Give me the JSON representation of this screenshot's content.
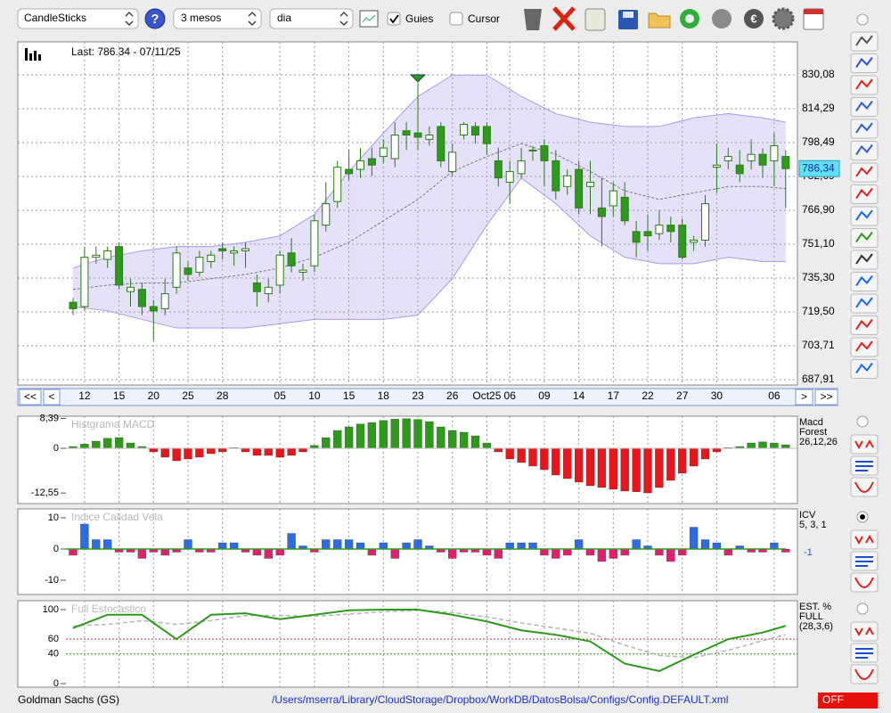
{
  "toolbar": {
    "chart_type": "CandleSticks",
    "period": "3 mesos",
    "interval": "dia",
    "guides": "Guies",
    "cursor": "Cursor"
  },
  "price_panel": {
    "type": "candlestick",
    "last": "Last: 786.34 - 07/11/25",
    "categories": [
      null,
      "12",
      null,
      null,
      "15",
      null,
      null,
      "20",
      null,
      null,
      "25",
      null,
      null,
      "28",
      null,
      null,
      null,
      null,
      "05",
      null,
      null,
      "10",
      null,
      null,
      "15",
      null,
      null,
      "18",
      null,
      null,
      "23",
      null,
      null,
      "26",
      null,
      null,
      "Oct25",
      null,
      "06",
      null,
      null,
      "09",
      null,
      null,
      "14",
      null,
      null,
      "17",
      null,
      null,
      "22",
      null,
      null,
      "27",
      null,
      null,
      "30",
      null,
      null,
      null,
      null,
      "06",
      null
    ],
    "open": [
      724,
      722,
      745,
      744,
      750,
      729,
      730,
      722,
      721,
      731,
      740,
      738,
      743,
      749,
      747,
      748,
      733,
      728,
      732,
      747,
      738,
      741,
      760,
      771,
      786,
      786,
      791,
      792,
      791,
      804,
      803,
      800,
      806,
      785,
      802,
      806,
      806,
      790,
      780,
      784,
      795,
      797,
      790,
      778,
      786,
      778,
      768,
      769,
      773,
      757,
      757,
      756,
      760,
      760,
      752,
      753,
      787,
      790,
      788,
      790,
      793,
      790,
      792
    ],
    "close": [
      721,
      745,
      746,
      748,
      732,
      731,
      722,
      720,
      728,
      747,
      737,
      745,
      746,
      748,
      748,
      749,
      729,
      731,
      746,
      741,
      739,
      762,
      770,
      787,
      784,
      790,
      788,
      796,
      802,
      802,
      801,
      802,
      790,
      794,
      807,
      802,
      798,
      782,
      785,
      790,
      795,
      790,
      776,
      783,
      768,
      780,
      764,
      776,
      762,
      752,
      755,
      760,
      757,
      745,
      753,
      770,
      788,
      792,
      784,
      793,
      788,
      797,
      786.34
    ],
    "high": [
      726,
      750,
      750,
      750,
      752,
      735,
      733,
      725,
      735,
      750,
      743,
      748,
      748,
      752,
      750,
      752,
      737,
      735,
      748,
      754,
      742,
      765,
      780,
      790,
      795,
      796,
      796,
      800,
      808,
      808,
      826,
      806,
      808,
      798,
      808,
      808,
      808,
      796,
      790,
      796,
      797,
      800,
      795,
      786,
      790,
      790,
      782,
      780,
      780,
      762,
      765,
      767,
      764,
      763,
      755,
      774,
      798,
      796,
      795,
      800,
      796,
      803,
      795
    ],
    "low": [
      718,
      720,
      742,
      740,
      730,
      722,
      718,
      706,
      718,
      728,
      734,
      736,
      740,
      744,
      741,
      740,
      722,
      724,
      728,
      738,
      734,
      738,
      757,
      768,
      781,
      782,
      783,
      789,
      787,
      795,
      795,
      797,
      787,
      783,
      800,
      798,
      793,
      778,
      770,
      782,
      790,
      778,
      772,
      774,
      765,
      765,
      750,
      764,
      760,
      745,
      748,
      753,
      752,
      744,
      748,
      750,
      775,
      786,
      780,
      786,
      782,
      778,
      768
    ],
    "up_color": "#ffffff",
    "down_color": "#2e9a1c",
    "signal_index": 30,
    "bands": {
      "x": [
        0,
        3,
        6,
        9,
        12,
        15,
        18,
        21,
        24,
        27,
        30,
        33,
        36,
        39,
        42,
        45,
        48,
        51,
        54,
        57,
        60,
        62
      ],
      "upper": [
        740,
        745,
        748,
        750,
        750,
        752,
        755,
        765,
        785,
        803,
        820,
        830,
        830,
        820,
        812,
        808,
        806,
        806,
        810,
        812,
        810,
        808
      ],
      "middle": [
        730,
        732,
        733,
        733,
        735,
        737,
        740,
        745,
        752,
        762,
        772,
        785,
        792,
        798,
        793,
        785,
        776,
        772,
        775,
        778,
        778,
        777
      ],
      "lower": [
        722,
        720,
        716,
        712,
        712,
        712,
        714,
        716,
        716,
        716,
        718,
        735,
        760,
        782,
        770,
        755,
        745,
        742,
        742,
        745,
        743,
        743
      ],
      "color": "#a99ae8"
    },
    "ylim": [
      685.42,
      845.46
    ],
    "yticks": [
      {
        "value": 830.08,
        "label": "830,08"
      },
      {
        "value": 814.29,
        "label": "814,29"
      },
      {
        "value": 798.49,
        "label": "798,49"
      },
      {
        "value": 782.69,
        "label": "782,69"
      },
      {
        "value": 766.9,
        "label": "766,90"
      },
      {
        "value": 751.1,
        "label": "751,10"
      },
      {
        "value": 735.3,
        "label": "735,30"
      },
      {
        "value": 719.5,
        "label": "719,50"
      },
      {
        "value": 703.71,
        "label": "703,71"
      },
      {
        "value": 687.91,
        "label": "687,91"
      }
    ],
    "last_price": {
      "value": 786.34,
      "label": "786,34"
    },
    "nav": [
      "<<",
      "<",
      ">",
      ">>"
    ],
    "grid": true
  },
  "macd_panel": {
    "type": "histogram",
    "title": "Histgrama MACD",
    "legend": [
      "Macd",
      "Forest",
      "26,12,26"
    ],
    "values": [
      0.5,
      1.2,
      2,
      2.8,
      3,
      1.5,
      0.5,
      -1,
      -2.5,
      -3.5,
      -3,
      -2.5,
      -1.5,
      -1,
      0.2,
      -1,
      -2,
      -2,
      -2.5,
      -2,
      -1,
      0.8,
      3,
      5,
      6,
      6.8,
      7.2,
      7.8,
      8.2,
      8.3,
      8.1,
      7.5,
      6,
      5,
      4.5,
      3.5,
      1.5,
      -1,
      -3,
      -4,
      -5,
      -6,
      -7.5,
      -8.5,
      -9.5,
      -10.5,
      -11,
      -11.5,
      -12,
      -12.2,
      -12.5,
      -11,
      -9,
      -7,
      -5,
      -3,
      -1,
      0.2,
      0.5,
      1.5,
      1.8,
      1.5,
      1
    ],
    "pos_color": "#2e9a1c",
    "neg_color": "#e8161b",
    "ylim": [
      -15.5,
      9
    ],
    "yticks": [
      {
        "value": 8.39,
        "label": "8,39"
      },
      0,
      {
        "value": -12.55,
        "label": "-12,55"
      }
    ]
  },
  "icv_panel": {
    "type": "histogram",
    "title": "Indice Calidad Vela",
    "legend": [
      "ICV",
      "5, 3, 1"
    ],
    "last_value": -1,
    "values": [
      -2,
      8,
      3,
      3,
      -1,
      -1,
      -3,
      -1,
      -2,
      -1,
      3,
      -1,
      -1,
      2,
      2,
      -1,
      -2,
      -3,
      -2,
      5,
      1,
      -1,
      3,
      3,
      3,
      2,
      -2,
      2,
      -3,
      2,
      3,
      1,
      -1,
      -3,
      -1,
      -1,
      -2,
      -3,
      2,
      2,
      2,
      -2,
      -3,
      -2,
      3,
      -2,
      -4,
      -3,
      -2,
      3,
      1,
      -2,
      -4,
      -2,
      7,
      3,
      2,
      -2,
      1,
      -1,
      -1,
      2,
      -1
    ],
    "pos_color": "#2f6be0",
    "neg_color": "#e0206e",
    "ylim": [
      -14.57,
      12.86
    ],
    "yticks": [
      10,
      0,
      -10
    ]
  },
  "stoch_panel": {
    "type": "line",
    "title": "Full Estocastico",
    "legend": [
      "EST. %",
      "FULL",
      "(28,3,6)"
    ],
    "x": [
      0,
      3,
      6,
      9,
      12,
      15,
      18,
      21,
      24,
      27,
      30,
      33,
      36,
      39,
      42,
      45,
      48,
      51,
      54,
      57,
      60,
      62
    ],
    "series": [
      {
        "color": "#2e9a1c",
        "values": [
          75,
          93,
          93,
          60,
          93,
          95,
          87,
          93,
          99,
          100,
          100,
          93,
          84,
          72,
          66,
          57,
          27,
          17,
          39,
          60,
          69,
          78
        ]
      },
      {
        "color": "#b5b5b5",
        "values": [
          78,
          80,
          85,
          80,
          85,
          92,
          92,
          91,
          94,
          97,
          99,
          96,
          90,
          82,
          75,
          68,
          52,
          38,
          35,
          45,
          58,
          66
        ]
      }
    ],
    "ylim": [
      -4.8,
      112
    ],
    "yticks": [
      100,
      60,
      40,
      0
    ]
  },
  "footer": {
    "ticker": "Goldman Sachs (GS)",
    "config_path": "/Users/mserra/Library/CloudStorage/Dropbox/WorkDB/DatosBolsa/Configs/Config.DEFAULT.xml",
    "status": "OFF"
  }
}
